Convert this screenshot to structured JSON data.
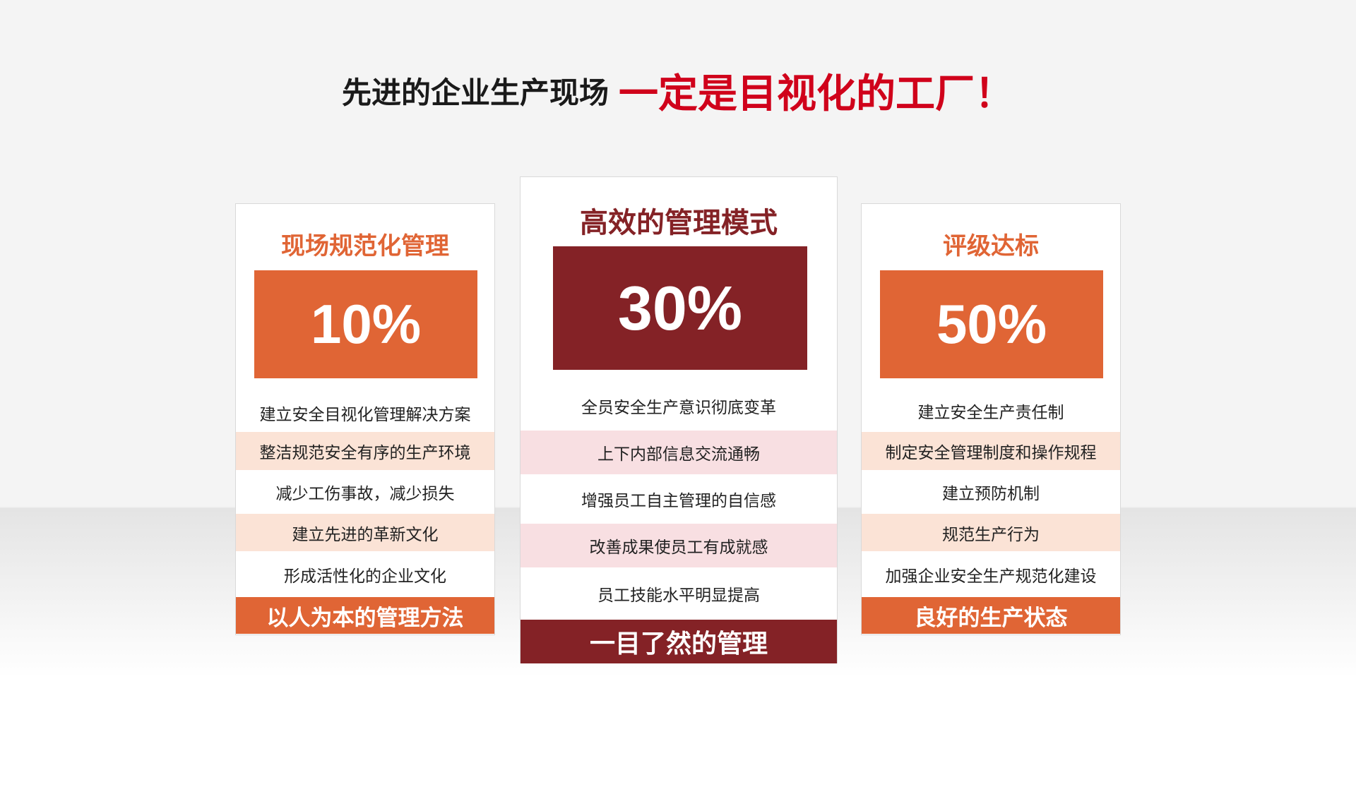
{
  "headline": {
    "part1": "先进的企业生产现场",
    "part2": "一定是目视化的工厂！"
  },
  "colors": {
    "orange": "#e06535",
    "dark_red": "#842226",
    "headline_red": "#d0021b",
    "orange_band": "#fbe3d6",
    "pink_band": "#f8dfe2"
  },
  "cards": [
    {
      "title": "现场规范化管理",
      "percent": "10%",
      "items": [
        "建立安全目视化管理解决方案",
        "整洁规范安全有序的生产环境",
        "减少工伤事故，减少损失",
        "建立先进的革新文化",
        "形成活性化的企业文化"
      ],
      "footer": "以人为本的管理方法"
    },
    {
      "title": "高效的管理模式",
      "percent": "30%",
      "items": [
        "全员安全生产意识彻底变革",
        "上下内部信息交流通畅",
        "增强员工自主管理的自信感",
        "改善成果使员工有成就感",
        "员工技能水平明显提高"
      ],
      "footer": "一目了然的管理"
    },
    {
      "title": "评级达标",
      "percent": "50%",
      "items": [
        "建立安全生产责任制",
        "制定安全管理制度和操作规程",
        "建立预防机制",
        "规范生产行为",
        "加强企业安全生产规范化建设"
      ],
      "footer": "良好的生产状态"
    }
  ]
}
